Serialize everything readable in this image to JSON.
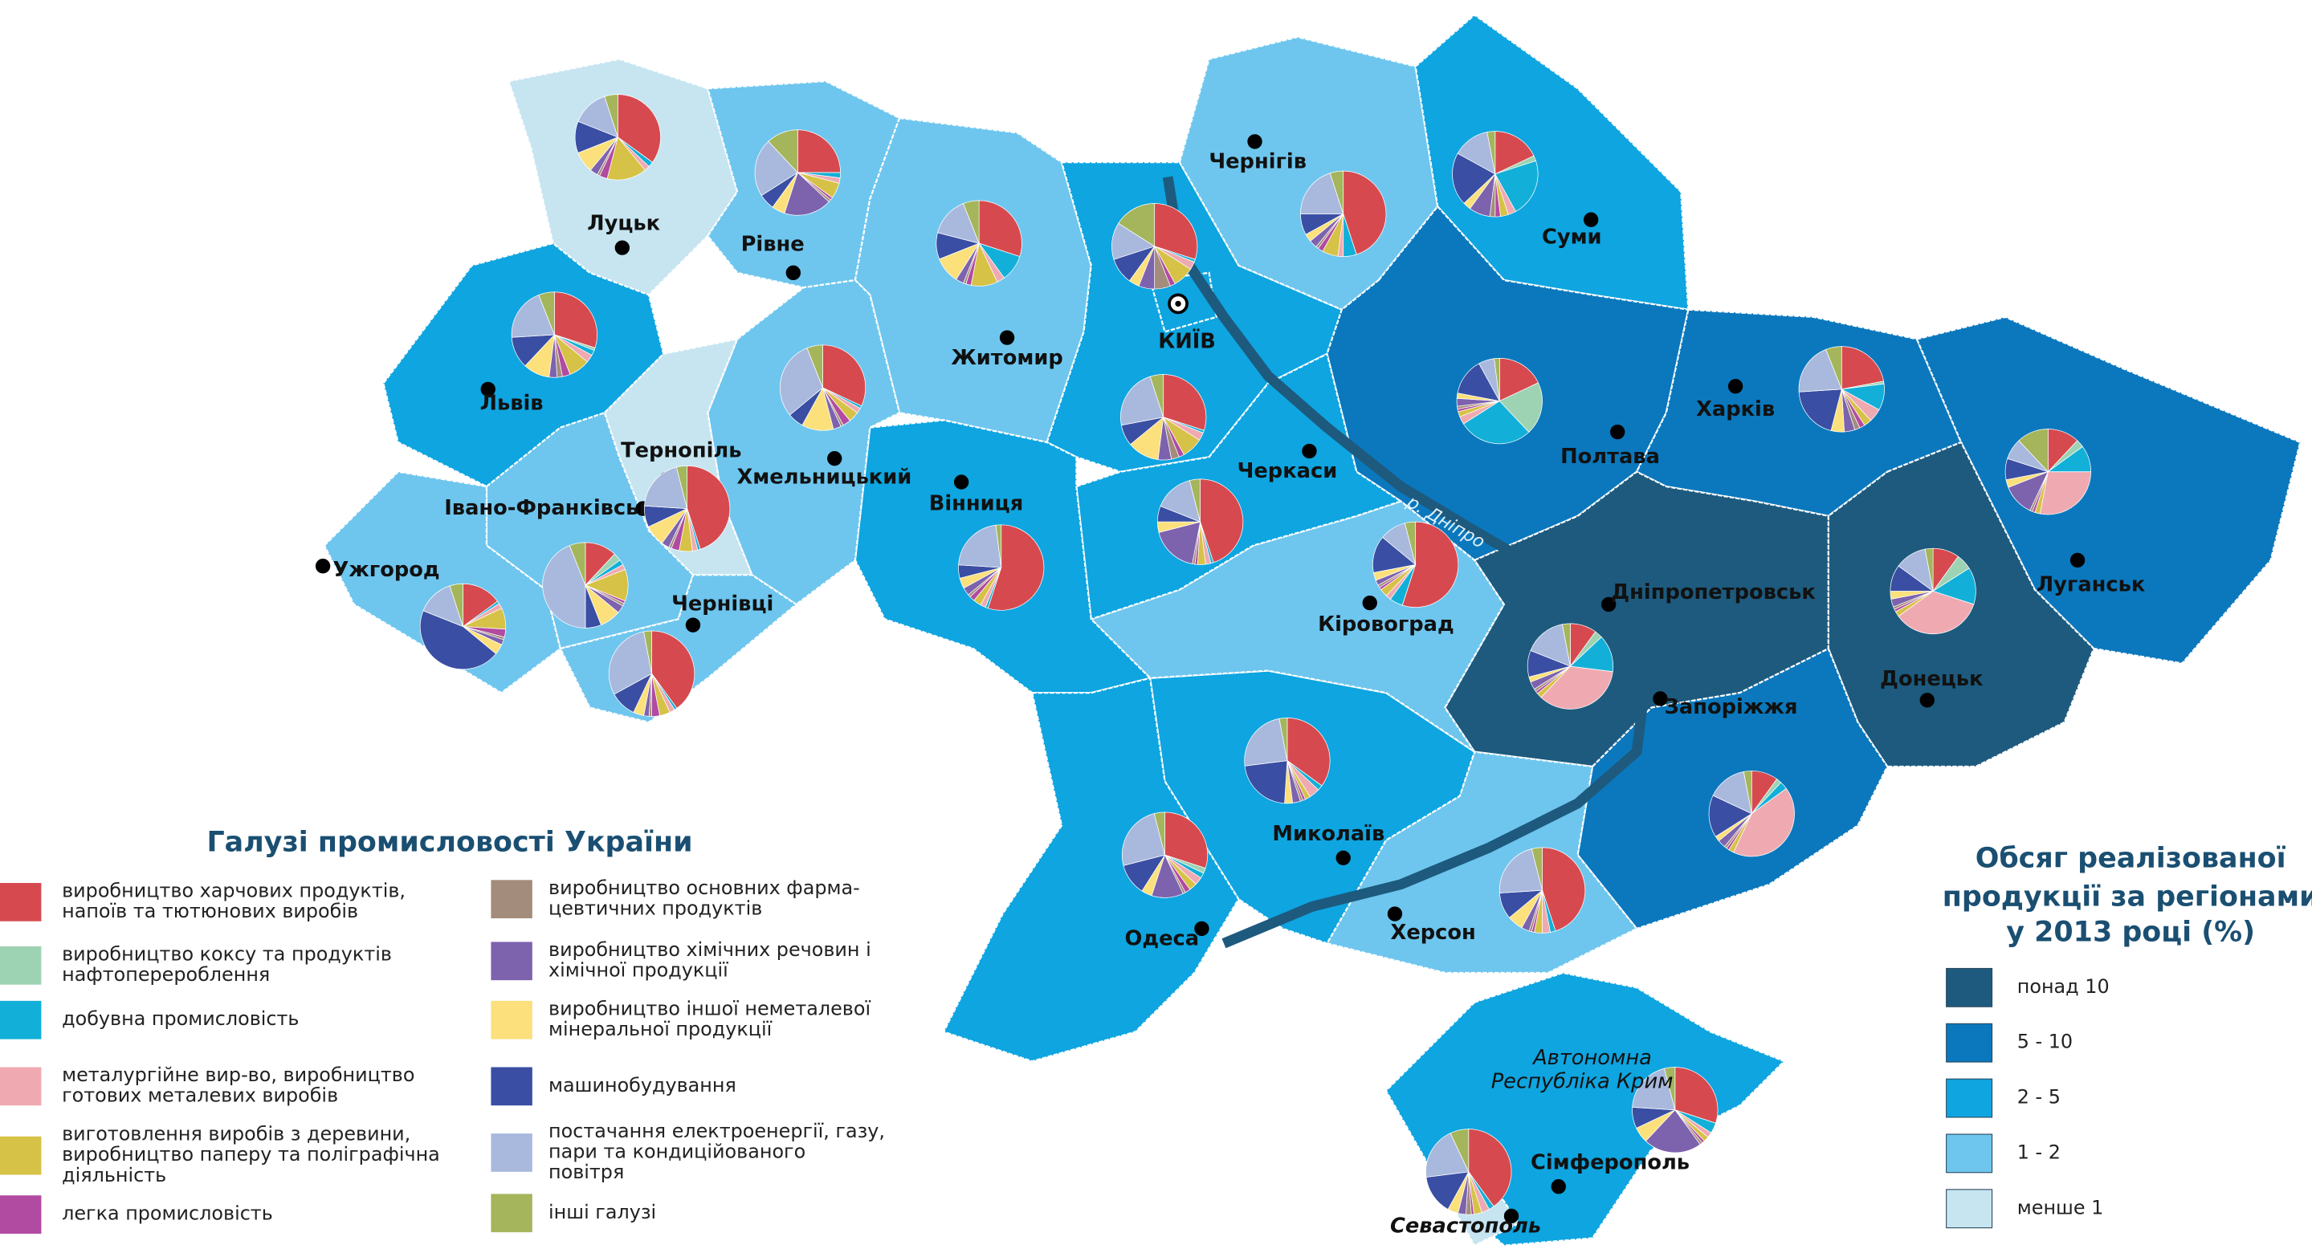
{
  "map": {
    "legend_industries": {
      "title": "Галузі промисловості України",
      "items": [
        {
          "label": [
            "виробництво харчових продуктів,",
            "напоїв та тютюнових виробів"
          ],
          "color": "#d64a4f"
        },
        {
          "label": [
            "виробництво коксу та продуктів",
            "нафтоперероблення"
          ],
          "color": "#9dd3b3"
        },
        {
          "label": [
            "добувна промисловість"
          ],
          "color": "#12b0d8"
        },
        {
          "label": [
            "металургійне вир-во, виробництво",
            "готових металевих виробів"
          ],
          "color": "#efaab1"
        },
        {
          "label": [
            "виготовлення виробів з деревини,",
            "виробництво паперу та поліграфічна",
            "діяльність"
          ],
          "color": "#d6c246"
        },
        {
          "label": [
            "легка промисловість"
          ],
          "color": "#b14aa1"
        },
        {
          "label": [
            "виробництво основних фарма-",
            "цевтичних продуктів"
          ],
          "color": "#a38c7b"
        },
        {
          "label": [
            "виробництво хімічних речовин і",
            "хімічної продукції"
          ],
          "color": "#7d62ae"
        },
        {
          "label": [
            "виробництво іншої неметалевої",
            "мінеральної продукції"
          ],
          "color": "#fbe07c"
        },
        {
          "label": [
            "машинобудування"
          ],
          "color": "#3a4ea3"
        },
        {
          "label": [
            "постачання електроенергії,  газу,",
            "пари та кондиційованого",
            "повітря"
          ],
          "color": "#a9b9dd"
        },
        {
          "label": [
            "інші галузі"
          ],
          "color": "#a4b55b"
        }
      ]
    },
    "legend_volume": {
      "title": [
        "Обсяг реалізованої",
        "продукції за регіонами",
        "у 2013 році (%)"
      ],
      "classes": [
        {
          "label": "понад 10",
          "color": "#1d5a7e"
        },
        {
          "label": "5 - 10",
          "color": "#0b78bd"
        },
        {
          "label": "2 - 5",
          "color": "#0ea5e0"
        },
        {
          "label": "1 - 2",
          "color": "#6ec6ee"
        },
        {
          "label": "менше 1",
          "color": "#c6e5f1"
        }
      ]
    },
    "river": "р. Дніпро",
    "crimea_label": [
      "Автономна",
      "Республіка Крим"
    ],
    "regions": [
      {
        "name": "Луцьк",
        "class": 4,
        "shares": [
          35,
          0,
          2,
          2,
          15,
          3,
          1,
          3,
          8,
          12,
          14,
          5
        ]
      },
      {
        "name": "Рівне",
        "class": 3,
        "shares": [
          25,
          0,
          2,
          2,
          6,
          1,
          1,
          18,
          5,
          6,
          22,
          12
        ]
      },
      {
        "name": "Житомир",
        "class": 3,
        "shares": [
          30,
          0,
          10,
          3,
          10,
          2,
          1,
          3,
          10,
          10,
          15,
          6
        ]
      },
      {
        "name": "Чернігів",
        "class": 3,
        "shares": [
          45,
          0,
          5,
          2,
          6,
          2,
          1,
          3,
          3,
          8,
          20,
          5
        ]
      },
      {
        "name": "Суми",
        "class": 2,
        "shares": [
          18,
          2,
          22,
          3,
          3,
          2,
          2,
          8,
          3,
          20,
          14,
          3
        ]
      },
      {
        "name": "Львів",
        "class": 2,
        "shares": [
          30,
          1,
          2,
          3,
          8,
          3,
          2,
          3,
          10,
          12,
          20,
          6
        ]
      },
      {
        "name": "Тернопіль",
        "class": 4,
        "shares": [
          45,
          0,
          1,
          2,
          5,
          3,
          1,
          3,
          8,
          8,
          20,
          4
        ]
      },
      {
        "name": "Хмельницький",
        "class": 3,
        "shares": [
          32,
          0,
          1,
          2,
          4,
          3,
          1,
          3,
          12,
          6,
          30,
          6
        ]
      },
      {
        "name": "КИЇВ",
        "class": 2,
        "shares": [
          30,
          0,
          1,
          3,
          8,
          2,
          6,
          6,
          4,
          10,
          14,
          16
        ]
      },
      {
        "name": null,
        "class": 2,
        "shares": [
          30,
          0,
          1,
          3,
          8,
          2,
          3,
          5,
          12,
          8,
          23,
          5
        ]
      },
      {
        "name": "Вінниця",
        "class": 2,
        "shares": [
          55,
          0,
          1,
          2,
          3,
          2,
          1,
          3,
          4,
          5,
          22,
          2
        ]
      },
      {
        "name": "Черкаси",
        "class": 2,
        "shares": [
          45,
          0,
          1,
          2,
          3,
          1,
          1,
          18,
          4,
          6,
          15,
          4
        ]
      },
      {
        "name": "Полтава",
        "class": 1,
        "shares": [
          18,
          20,
          28,
          3,
          2,
          1,
          1,
          3,
          2,
          14,
          6,
          2
        ]
      },
      {
        "name": "Харків",
        "class": 1,
        "shares": [
          22,
          1,
          10,
          5,
          3,
          2,
          2,
          4,
          5,
          20,
          20,
          6
        ]
      },
      {
        "name": "Луганськ",
        "class": 1,
        "shares": [
          12,
          3,
          10,
          28,
          2,
          1,
          1,
          12,
          3,
          8,
          8,
          12
        ]
      },
      {
        "name": "Донецьк",
        "class": 0,
        "shares": [
          10,
          6,
          14,
          35,
          2,
          1,
          1,
          3,
          3,
          10,
          12,
          3
        ]
      },
      {
        "name": "Дніпропетровськ",
        "class": 0,
        "shares": [
          10,
          3,
          14,
          35,
          2,
          1,
          1,
          3,
          2,
          10,
          16,
          3
        ]
      },
      {
        "name": "Запоріжжя",
        "class": 1,
        "shares": [
          10,
          2,
          3,
          42,
          2,
          1,
          1,
          3,
          2,
          16,
          15,
          3
        ]
      },
      {
        "name": "Кіровоград",
        "class": 3,
        "shares": [
          55,
          0,
          5,
          2,
          3,
          1,
          1,
          2,
          3,
          14,
          10,
          4
        ]
      },
      {
        "name": "Миколаїв",
        "class": 2,
        "shares": [
          35,
          0,
          2,
          4,
          2,
          1,
          1,
          3,
          3,
          22,
          24,
          3
        ]
      },
      {
        "name": "Одеса",
        "class": 2,
        "shares": [
          30,
          2,
          2,
          3,
          3,
          2,
          1,
          12,
          4,
          12,
          25,
          4
        ]
      },
      {
        "name": "Херсон",
        "class": 3,
        "shares": [
          45,
          0,
          2,
          3,
          3,
          1,
          1,
          3,
          6,
          10,
          22,
          4
        ]
      },
      {
        "name": "Івано-Франківськ",
        "class": 3,
        "shares": [
          12,
          3,
          2,
          2,
          12,
          1,
          1,
          3,
          8,
          6,
          44,
          6
        ]
      },
      {
        "name": "Ужгород",
        "class": 3,
        "shares": [
          15,
          0,
          1,
          2,
          8,
          3,
          1,
          2,
          4,
          45,
          14,
          5
        ]
      },
      {
        "name": "Чернівці",
        "class": 3,
        "shares": [
          40,
          0,
          1,
          2,
          4,
          3,
          1,
          2,
          4,
          10,
          30,
          3
        ]
      },
      {
        "name": "Сімферополь",
        "class": 2,
        "shares": [
          30,
          0,
          4,
          2,
          2,
          1,
          1,
          22,
          6,
          8,
          20,
          4
        ]
      },
      {
        "name": "Севастополь",
        "class": 4,
        "shares": [
          40,
          0,
          2,
          3,
          3,
          1,
          2,
          3,
          4,
          15,
          20,
          7
        ]
      }
    ]
  }
}
